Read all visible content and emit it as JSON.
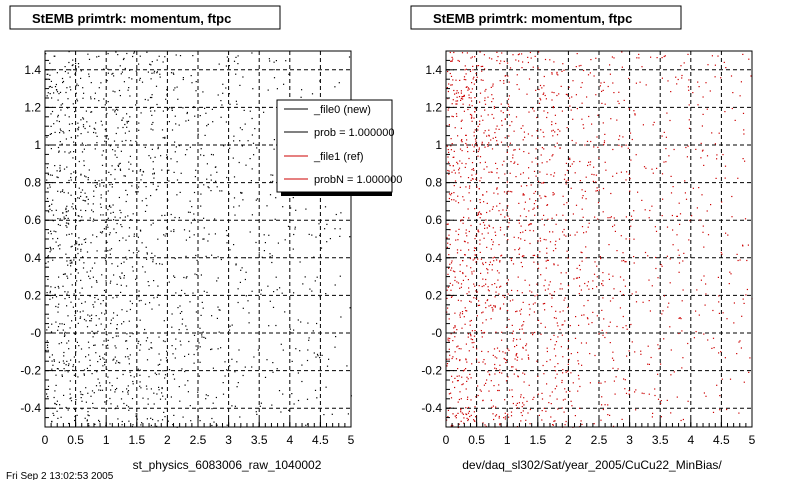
{
  "colors": {
    "new": "#000000",
    "ref": "#cc0000",
    "frame": "#000000",
    "background": "#ffffff"
  },
  "legend": {
    "entries": [
      {
        "label": "_file0 (new)",
        "color": "#000000"
      },
      {
        "label": "prob = 1.000000",
        "color": "#000000"
      },
      {
        "label": "_file1 (ref)",
        "color": "#cc0000"
      },
      {
        "label": "probN = 1.000000",
        "color": "#cc0000"
      }
    ]
  },
  "chart_data": [
    {
      "type": "scatter",
      "title": "StEMB primtrk: momentum, ftpc",
      "xlabel": "st_physics_6083006_raw_1040002",
      "ylabel": "",
      "xlim": [
        0,
        5
      ],
      "ylim": [
        -0.5,
        1.5
      ],
      "x_ticks": [
        "0",
        "0.5",
        "1",
        "1.5",
        "2",
        "2.5",
        "3",
        "3.5",
        "4",
        "4.5",
        "5"
      ],
      "y_ticks": [
        "-0.4",
        "-0.2",
        "-0",
        "0.2",
        "0.4",
        "0.6",
        "0.8",
        "1",
        "1.2",
        "1.4"
      ],
      "grid": true,
      "series": [
        {
          "name": "_file0 (new)",
          "color": "#000000",
          "point_count": 1600,
          "density": "higher at low x, roughly uniform in y"
        }
      ]
    },
    {
      "type": "scatter",
      "title": "StEMB primtrk: momentum, ftpc",
      "xlabel": "dev/daq_sl302/Sat/year_2005/CuCu22_MinBias/",
      "ylabel": "",
      "xlim": [
        0,
        5
      ],
      "ylim": [
        -0.5,
        1.5
      ],
      "x_ticks": [
        "0",
        "0.5",
        "1",
        "1.5",
        "2",
        "2.5",
        "3",
        "3.5",
        "4",
        "4.5",
        "5"
      ],
      "y_ticks": [
        "-0.4",
        "-0.2",
        "-0",
        "0.2",
        "0.4",
        "0.6",
        "0.8",
        "1",
        "1.2",
        "1.4"
      ],
      "grid": true,
      "series": [
        {
          "name": "_file1 (ref)",
          "color": "#cc0000",
          "point_count": 1800,
          "density": "higher at low x, roughly uniform in y"
        }
      ]
    }
  ],
  "footer": {
    "text": "Fri Sep  2 13:02:53 2005"
  }
}
